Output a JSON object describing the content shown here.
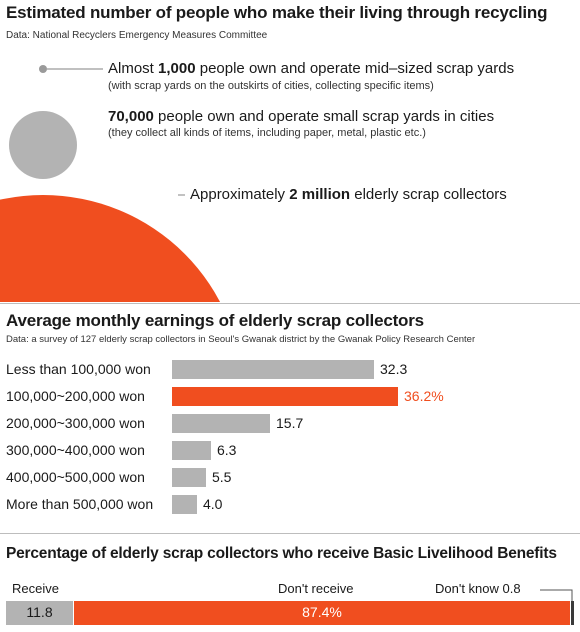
{
  "section1": {
    "title": "Estimated number of people who make their living through recycling",
    "source": "Data: National Recyclers Emergency Measures Committee",
    "items": [
      {
        "pre": "Almost ",
        "num": "1,000",
        "post": " people own and operate mid–sized scrap yards",
        "sub": "(with scrap yards on the outskirts of cities, collecting specific items)"
      },
      {
        "pre": "",
        "num": "70,000",
        "post": " people own and operate small scrap yards in cities",
        "sub": "(they collect all kinds of items, including paper, metal, plastic etc.)"
      },
      {
        "pre": "Approximately ",
        "num": "2 million",
        "post": " elderly scrap collectors",
        "sub": ""
      }
    ],
    "colors": {
      "small_dot": "#9a9a9a",
      "mid_circle": "#b3b3b3",
      "big_circle": "#f04e1f"
    }
  },
  "section2": {
    "title": "Average monthly earnings of elderly scrap collectors",
    "source": "Data: a survey of 127 elderly scrap collectors in Seoul's Gwanak district by the Gwanak Policy Research Center",
    "value_labels": [
      "32.3",
      "36.2%",
      "15.7",
      "6.3",
      "5.5",
      "4.0"
    ]
  },
  "section3": {
    "title": "Percentage of elderly scrap collectors who receive Basic Livelihood Benefits",
    "labels": {
      "receive": "Receive",
      "dont_receive": "Don't receive",
      "dont_know": "Don't know 0.8"
    },
    "value_labels": {
      "receive": "11.8",
      "dont_receive": "87.4%"
    }
  },
  "chart_data": [
    {
      "type": "bar",
      "orientation": "horizontal",
      "title": "Average monthly earnings of elderly scrap collectors",
      "categories": [
        "Less than 100,000 won",
        "100,000~200,000 won",
        "200,000~300,000 won",
        "300,000~400,000 won",
        "400,000~500,000 won",
        "More than 500,000 won"
      ],
      "values": [
        32.3,
        36.2,
        15.7,
        6.3,
        5.5,
        4.0
      ],
      "unit": "%",
      "highlight_index": 1,
      "colors": {
        "bar": "#b3b3b3",
        "highlight": "#f04e1f"
      }
    },
    {
      "type": "bar",
      "orientation": "stacked-horizontal",
      "title": "Percentage of elderly scrap collectors who receive Basic Livelihood Benefits",
      "categories": [
        "Receive",
        "Don't receive",
        "Don't know"
      ],
      "values": [
        11.8,
        87.4,
        0.8
      ],
      "unit": "%",
      "colors": [
        "#b3b3b3",
        "#f04e1f",
        "#3a3a3a"
      ]
    }
  ]
}
